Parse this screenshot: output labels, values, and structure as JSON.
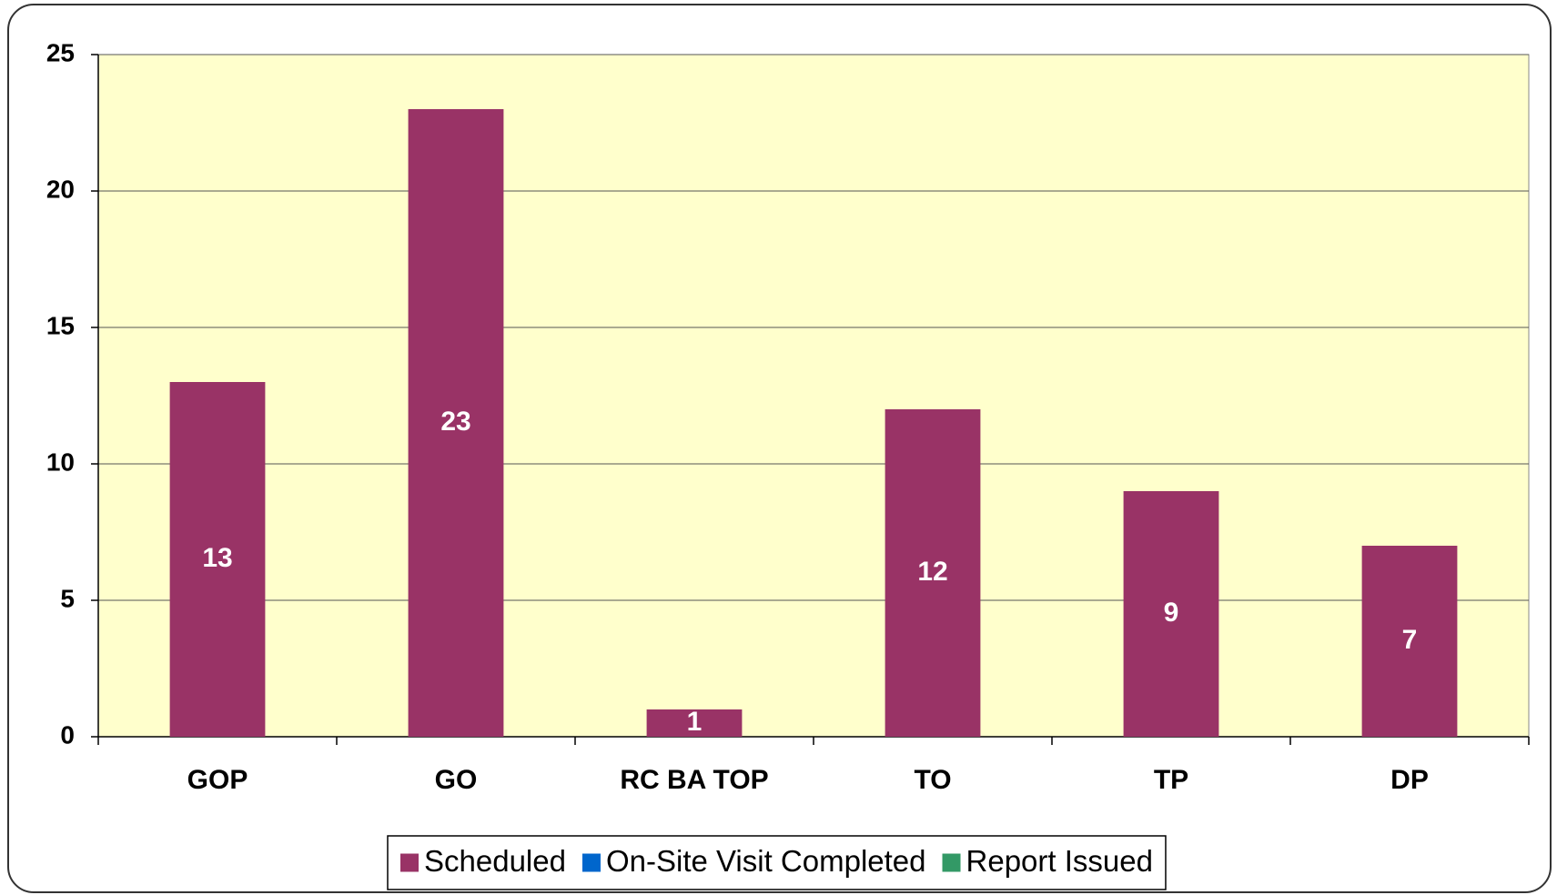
{
  "chart_data": {
    "type": "bar",
    "categories": [
      "GOP",
      "GO",
      "RC BA TOP",
      "TO",
      "TP",
      "DP"
    ],
    "series": [
      {
        "name": "Scheduled",
        "color": "#993366",
        "values": [
          13,
          23,
          1,
          12,
          9,
          7
        ]
      },
      {
        "name": "On-Site Visit Completed",
        "color": "#0066cc",
        "values": [
          null,
          null,
          null,
          null,
          null,
          null
        ]
      },
      {
        "name": "Report Issued",
        "color": "#339966",
        "values": [
          null,
          null,
          null,
          null,
          null,
          null
        ]
      }
    ],
    "ylim": [
      0,
      25
    ],
    "yticks": [
      0,
      5,
      10,
      15,
      20,
      25
    ],
    "grid": true,
    "plot_background": "#ffffcc",
    "legend": "bottom"
  }
}
